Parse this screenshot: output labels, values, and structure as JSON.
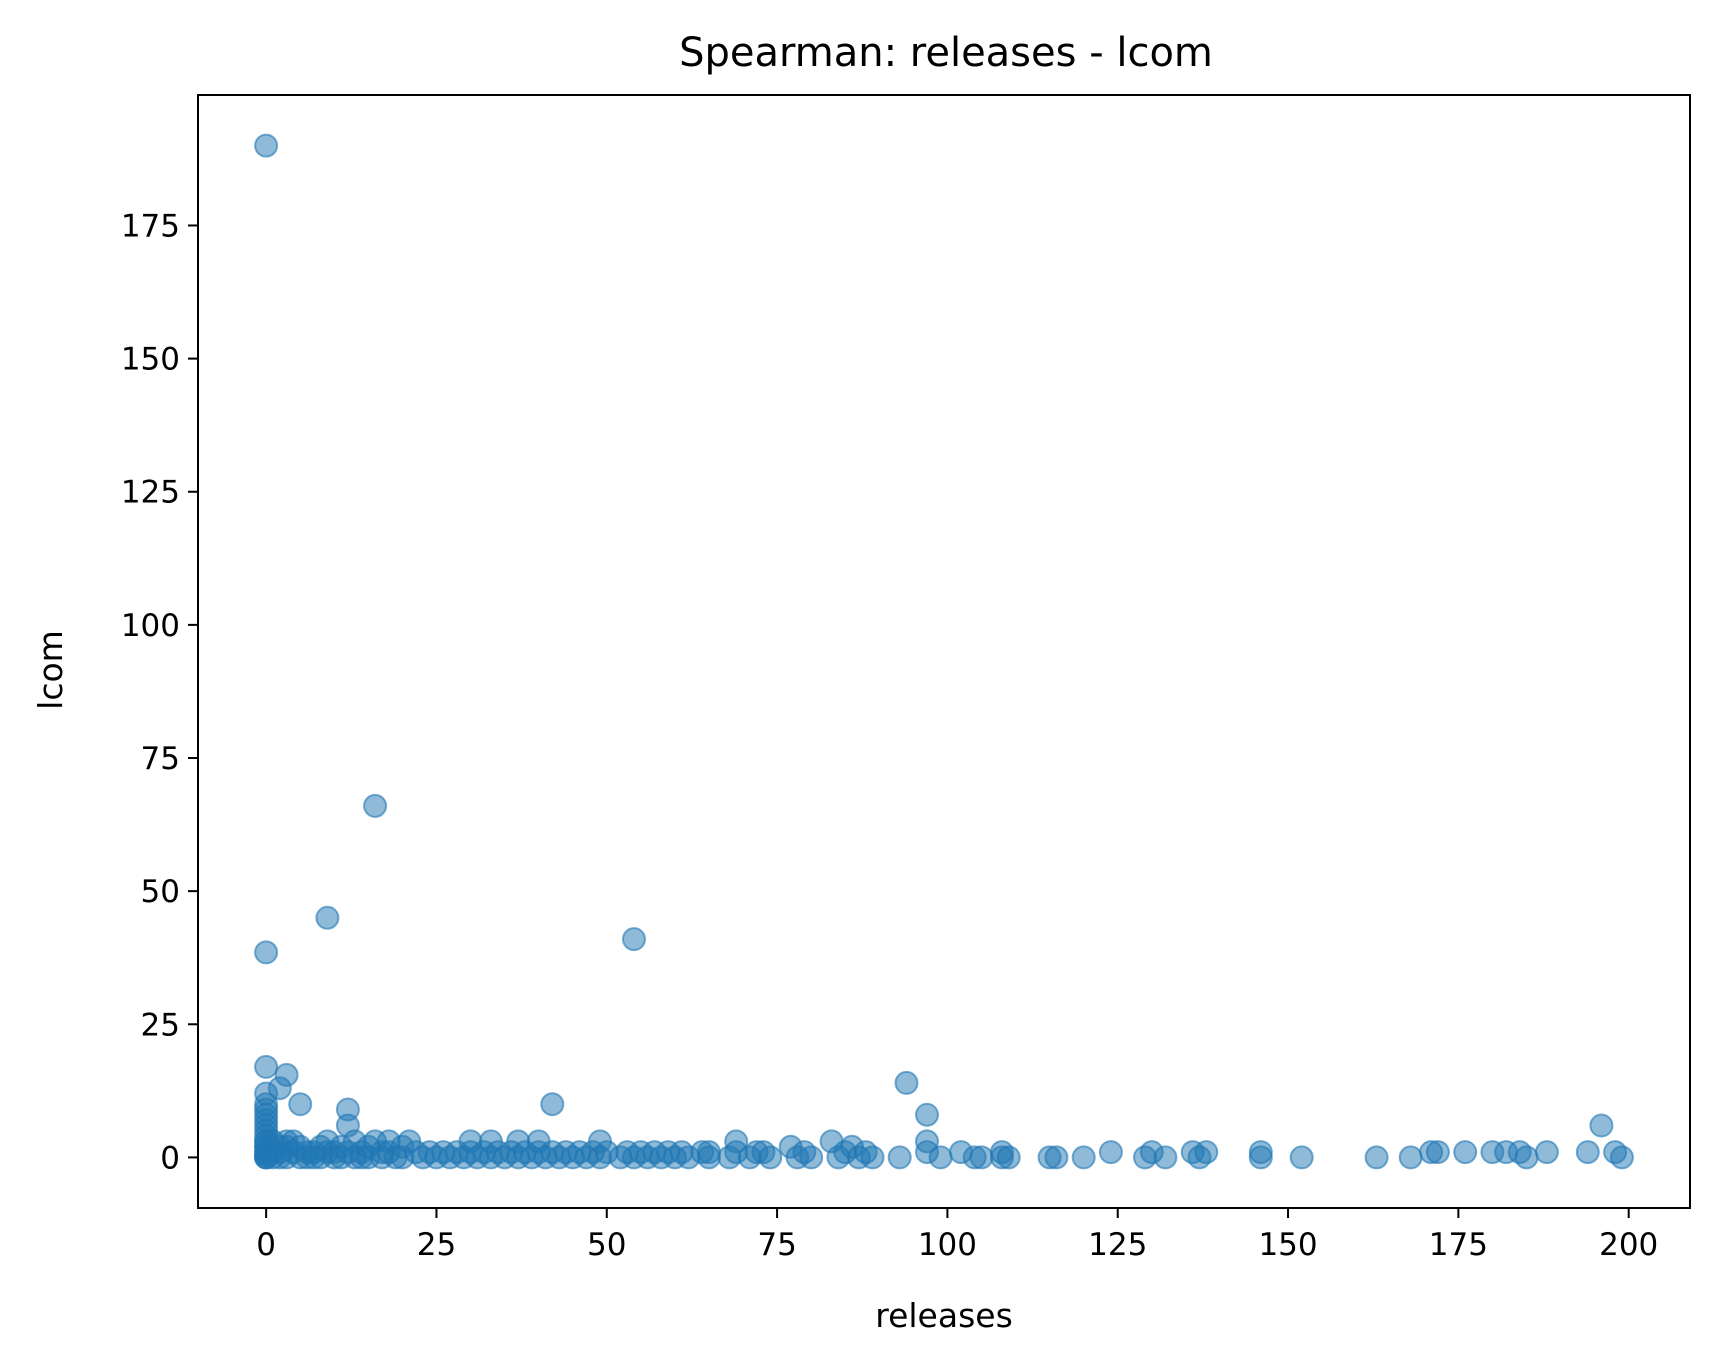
{
  "chart_data": {
    "type": "scatter",
    "title": "Spearman: releases - lcom",
    "xlabel": "releases",
    "ylabel": "lcom",
    "xlim": [
      -10,
      209
    ],
    "ylim": [
      -9.5,
      199.5
    ],
    "xticks": [
      0,
      25,
      50,
      75,
      100,
      125,
      150,
      175,
      200
    ],
    "yticks": [
      0,
      25,
      50,
      75,
      100,
      125,
      150,
      175
    ],
    "grid": false,
    "legend": "none",
    "color": "#1f77b4",
    "opacity": 0.5,
    "x": [
      0,
      16,
      9,
      0,
      54,
      0,
      3,
      2,
      5,
      0,
      0,
      12,
      42,
      94,
      97,
      196,
      0,
      0,
      0,
      0,
      0,
      0,
      0,
      0,
      0,
      0,
      0,
      0,
      0,
      0,
      0,
      0,
      1,
      1,
      1,
      2,
      2,
      2,
      3,
      3,
      3,
      4,
      4,
      5,
      5,
      6,
      6,
      7,
      7,
      8,
      8,
      9,
      9,
      10,
      10,
      11,
      11,
      12,
      12,
      13,
      13,
      14,
      14,
      15,
      15,
      16,
      17,
      17,
      18,
      18,
      19,
      20,
      20,
      21,
      22,
      23,
      24,
      25,
      26,
      27,
      28,
      29,
      30,
      30,
      31,
      32,
      33,
      33,
      34,
      35,
      36,
      37,
      37,
      38,
      39,
      40,
      40,
      41,
      42,
      43,
      44,
      45,
      46,
      47,
      48,
      49,
      49,
      50,
      52,
      53,
      54,
      55,
      56,
      57,
      58,
      59,
      60,
      61,
      62,
      64,
      65,
      65,
      68,
      69,
      69,
      71,
      72,
      73,
      74,
      77,
      78,
      79,
      80,
      83,
      84,
      85,
      86,
      87,
      88,
      89,
      93,
      97,
      97,
      99,
      102,
      104,
      105,
      108,
      108,
      109,
      115,
      116,
      120,
      124,
      129,
      130,
      132,
      136,
      137,
      138,
      146,
      146,
      152,
      163,
      168,
      171,
      172,
      176,
      180,
      182,
      184,
      185,
      188,
      194,
      198,
      199
    ],
    "y": [
      190,
      66,
      45,
      38.5,
      41,
      17,
      15.5,
      13,
      10,
      12,
      10,
      9,
      10,
      14,
      8,
      6,
      9,
      8,
      7,
      6,
      5,
      4,
      3,
      2,
      1,
      0.5,
      0,
      0,
      1,
      2,
      3,
      0,
      1,
      3,
      0,
      2,
      0,
      1,
      3,
      0,
      2,
      1,
      3,
      0,
      2,
      1,
      0,
      1,
      0,
      2,
      0,
      1,
      3,
      0,
      1,
      2,
      0,
      6,
      1,
      0,
      3,
      1,
      0,
      2,
      0,
      3,
      1,
      0,
      3,
      1,
      0,
      2,
      0,
      3,
      1,
      0,
      1,
      0,
      1,
      0,
      1,
      0,
      3,
      1,
      0,
      1,
      3,
      0,
      1,
      0,
      1,
      3,
      0,
      1,
      0,
      3,
      1,
      0,
      1,
      0,
      1,
      0,
      1,
      0,
      1,
      3,
      0,
      1,
      0,
      1,
      0,
      1,
      0,
      1,
      0,
      1,
      0,
      1,
      0,
      1,
      1,
      0,
      0,
      3,
      1,
      0,
      1,
      1,
      0,
      2,
      0,
      1,
      0,
      3,
      0,
      1,
      2,
      0,
      1,
      0,
      0,
      3,
      1,
      0,
      1,
      0,
      0,
      1,
      0,
      0,
      0,
      0,
      0,
      1,
      0,
      1,
      0,
      1,
      0,
      1,
      0,
      1,
      0,
      0,
      0,
      1,
      1,
      1,
      1,
      1,
      1,
      0,
      1,
      1,
      1,
      0
    ]
  }
}
